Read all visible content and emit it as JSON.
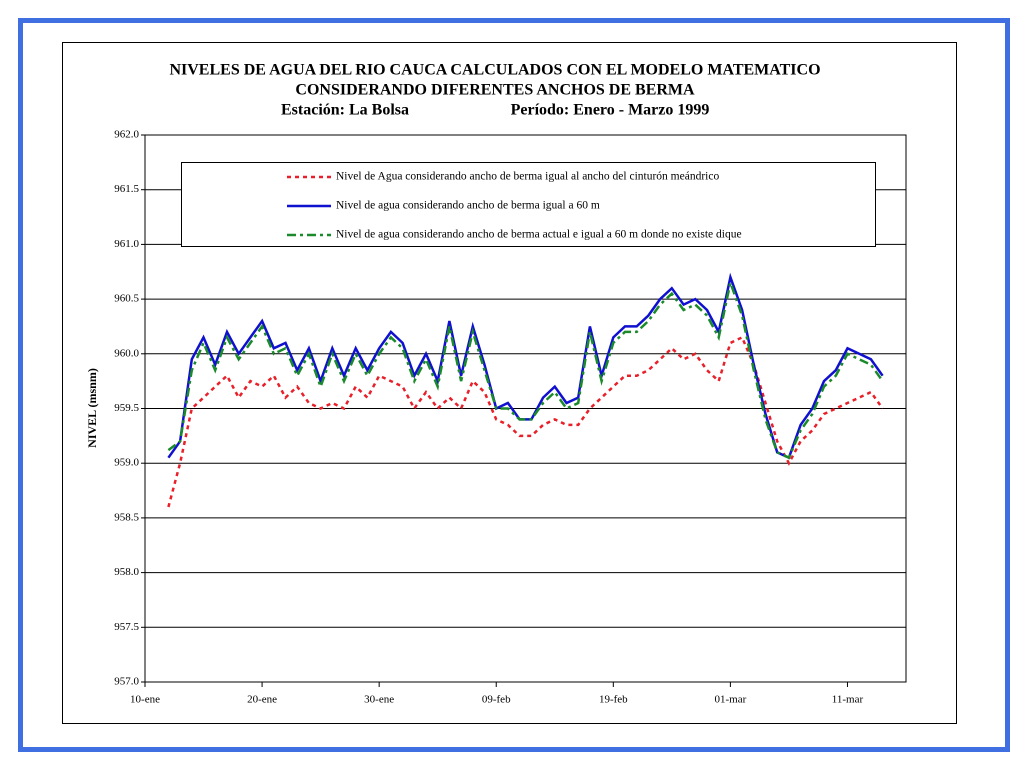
{
  "chart_data": {
    "type": "line",
    "title": [
      "NIVELES DE AGUA DEL RIO CAUCA CALCULADOS CON EL MODELO MATEMATICO",
      "CONSIDERANDO DIFERENTES ANCHOS DE BERMA"
    ],
    "subtitle": [
      "Estación: La Bolsa",
      "Período: Enero - Marzo 1999"
    ],
    "y_label": "NIVEL (msnm)",
    "x": [
      "10-ene",
      "11-ene",
      "12-ene",
      "13-ene",
      "14-ene",
      "15-ene",
      "16-ene",
      "17-ene",
      "18-ene",
      "19-ene",
      "20-ene",
      "21-ene",
      "22-ene",
      "23-ene",
      "24-ene",
      "25-ene",
      "26-ene",
      "27-ene",
      "28-ene",
      "29-ene",
      "30-ene",
      "31-ene",
      "01-feb",
      "02-feb",
      "03-feb",
      "04-feb",
      "05-feb",
      "06-feb",
      "07-feb",
      "08-feb",
      "09-feb",
      "10-feb",
      "11-feb",
      "12-feb",
      "13-feb",
      "14-feb",
      "15-feb",
      "16-feb",
      "17-feb",
      "18-feb",
      "19-feb",
      "20-feb",
      "21-feb",
      "22-feb",
      "23-feb",
      "24-feb",
      "25-feb",
      "26-feb",
      "27-feb",
      "28-feb",
      "01-mar",
      "02-mar",
      "03-mar",
      "04-mar",
      "05-mar",
      "06-mar",
      "07-mar",
      "08-mar",
      "09-mar",
      "10-mar",
      "11-mar",
      "12-mar",
      "13-mar",
      "14-mar",
      "15-mar",
      "16-mar"
    ],
    "xlim": [
      "10-ene",
      "16-mar"
    ],
    "xticks": [
      "10-ene",
      "20-ene",
      "30-ene",
      "09-feb",
      "19-feb",
      "01-mar",
      "11-mar"
    ],
    "ylim": [
      957,
      962
    ],
    "yticks": [
      {
        "value": 957,
        "label": "957.0"
      },
      {
        "value": 957.5,
        "label": "957.5"
      },
      {
        "value": 958,
        "label": "958.0"
      },
      {
        "value": 958.5,
        "label": "958.5"
      },
      {
        "value": 959,
        "label": "959.0"
      },
      {
        "value": 959.5,
        "label": "959.5"
      },
      {
        "value": 960,
        "label": "960.0"
      },
      {
        "value": 960.5,
        "label": "960.5"
      },
      {
        "value": 961,
        "label": "961.0"
      },
      {
        "value": 961.5,
        "label": "961.5"
      },
      {
        "value": 962,
        "label": "962.0"
      }
    ],
    "grid": true,
    "legend": "top",
    "series": [
      {
        "name": "Nivel de Agua considerando ancho de berma igual al ancho del cinturón meándrico",
        "color": "#e8202a",
        "style": "dotted",
        "values": [
          null,
          null,
          958.6,
          959.0,
          959.5,
          959.6,
          959.7,
          959.8,
          959.6,
          959.75,
          959.7,
          959.8,
          959.6,
          959.7,
          959.55,
          959.5,
          959.55,
          959.5,
          959.7,
          959.6,
          959.8,
          959.75,
          959.7,
          959.5,
          959.65,
          959.5,
          959.6,
          959.5,
          959.75,
          959.65,
          959.4,
          959.35,
          959.25,
          959.25,
          959.35,
          959.4,
          959.35,
          959.35,
          959.5,
          959.6,
          959.7,
          959.8,
          959.8,
          959.85,
          959.95,
          960.05,
          959.95,
          960.0,
          959.85,
          959.75,
          960.1,
          960.15,
          959.9,
          959.55,
          959.2,
          959.0,
          959.2,
          959.3,
          959.45,
          959.5,
          959.55,
          959.6,
          959.65,
          959.5,
          null,
          null
        ]
      },
      {
        "name": "Nivel de agua considerando ancho de berma igual a 60 m",
        "color": "#1010d0",
        "style": "solid",
        "values": [
          null,
          null,
          959.05,
          959.2,
          959.95,
          960.15,
          959.9,
          960.2,
          960.0,
          960.15,
          960.3,
          960.05,
          960.1,
          959.85,
          960.05,
          959.75,
          960.05,
          959.8,
          960.05,
          959.85,
          960.05,
          960.2,
          960.1,
          959.8,
          960.0,
          959.75,
          960.3,
          959.8,
          960.25,
          959.9,
          959.5,
          959.55,
          959.4,
          959.4,
          959.6,
          959.7,
          959.55,
          959.6,
          960.25,
          959.8,
          960.15,
          960.25,
          960.25,
          960.35,
          960.5,
          960.6,
          960.45,
          960.5,
          960.4,
          960.2,
          960.7,
          960.4,
          959.9,
          959.45,
          959.1,
          959.05,
          959.35,
          959.5,
          959.75,
          959.85,
          960.05,
          960.0,
          959.95,
          959.8,
          null,
          null
        ]
      },
      {
        "name": "Nivel de agua considerando ancho de berma actual e igual a 60 m donde no existe dique",
        "color": "#1a8a2a",
        "style": "dashdot",
        "values": [
          null,
          null,
          959.12,
          959.2,
          959.85,
          960.1,
          959.85,
          960.15,
          959.95,
          960.1,
          960.25,
          960.0,
          960.05,
          959.8,
          960.0,
          959.7,
          960.0,
          959.75,
          960.0,
          959.8,
          960.0,
          960.15,
          960.05,
          959.75,
          959.95,
          959.7,
          960.25,
          959.75,
          960.2,
          959.85,
          959.5,
          959.5,
          959.4,
          959.4,
          959.55,
          959.65,
          959.5,
          959.55,
          960.2,
          959.75,
          960.1,
          960.2,
          960.2,
          960.3,
          960.45,
          960.55,
          960.4,
          960.45,
          960.35,
          960.15,
          960.65,
          960.35,
          959.85,
          959.4,
          959.1,
          959.05,
          959.3,
          959.45,
          959.7,
          959.8,
          960.0,
          959.95,
          959.9,
          959.75,
          null,
          null
        ]
      }
    ]
  }
}
